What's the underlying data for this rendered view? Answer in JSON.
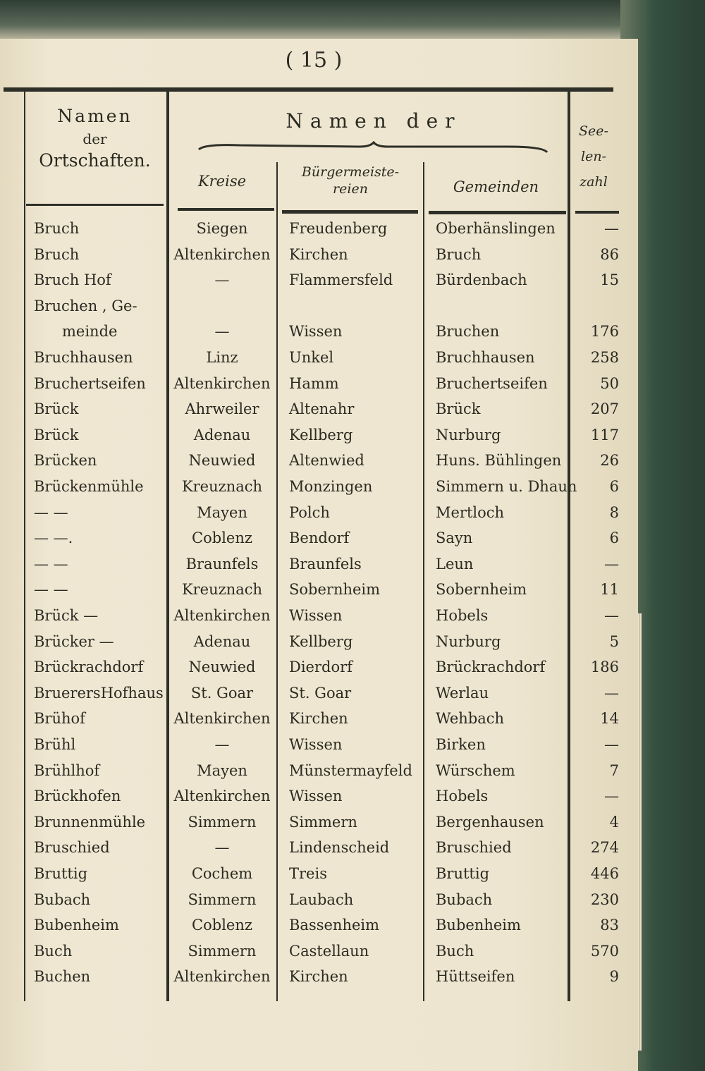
{
  "page_number": "( 15 )",
  "headers": {
    "places": [
      "Namen",
      "der",
      "Ortschaften."
    ],
    "group": "Namen der",
    "kreise": "Kreise",
    "buergermeistereien": [
      "Bürgermeiste-",
      "reien"
    ],
    "gemeinden": "Gemeinden",
    "seelenzahl": [
      "See-",
      "len-",
      "zahl"
    ]
  },
  "rows": [
    {
      "ort": "Bruch",
      "kreis": "Siegen",
      "bm": "Freudenberg",
      "gemeinde": "Oberhänslingen",
      "zahl": "—"
    },
    {
      "ort": "Bruch",
      "kreis": "Altenkirchen",
      "bm": "Kirchen",
      "gemeinde": "Bruch",
      "zahl": "86"
    },
    {
      "ort": "Bruch Hof",
      "kreis": "—",
      "bm": "Flammersfeld",
      "gemeinde": "Bürdenbach",
      "zahl": "15"
    },
    {
      "ort": "Bruchen , Ge-",
      "ort2": "meinde",
      "kreis": "—",
      "bm": "Wissen",
      "gemeinde": "Bruchen",
      "zahl": "176"
    },
    {
      "ort": "Bruchhausen",
      "kreis": "Linz",
      "bm": "Unkel",
      "gemeinde": "Bruchhausen",
      "zahl": "258"
    },
    {
      "ort": "Bruchertseifen",
      "kreis": "Altenkirchen",
      "bm": "Hamm",
      "gemeinde": "Bruchertseifen",
      "zahl": "50"
    },
    {
      "ort": "Brück",
      "kreis": "Ahrweiler",
      "bm": "Altenahr",
      "gemeinde": "Brück",
      "zahl": "207"
    },
    {
      "ort": "Brück",
      "kreis": "Adenau",
      "bm": "Kellberg",
      "gemeinde": "Nurburg",
      "zahl": "117"
    },
    {
      "ort": "Brücken",
      "kreis": "Neuwied",
      "bm": "Altenwied",
      "gemeinde": "Huns. Bühlingen",
      "zahl": "26"
    },
    {
      "ort": "Brückenmühle",
      "kreis": "Kreuznach",
      "bm": "Monzingen",
      "gemeinde": "Simmern u. Dhaun",
      "zahl": "6"
    },
    {
      "ort": "—   —",
      "kreis": "Mayen",
      "bm": "Polch",
      "gemeinde": "Mertloch",
      "zahl": "8"
    },
    {
      "ort": "—   —.",
      "kreis": "Coblenz",
      "bm": "Bendorf",
      "gemeinde": "Sayn",
      "zahl": "6"
    },
    {
      "ort": "—   —",
      "kreis": "Braunfels",
      "bm": "Braunfels",
      "gemeinde": "Leun",
      "zahl": "—"
    },
    {
      "ort": "—   —",
      "kreis": "Kreuznach",
      "bm": "Sobernheim",
      "gemeinde": "Sobernheim",
      "zahl": "11"
    },
    {
      "ort": "Brück —",
      "kreis": "Altenkirchen",
      "bm": "Wissen",
      "gemeinde": "Hobels",
      "zahl": "—"
    },
    {
      "ort": "Brücker —",
      "kreis": "Adenau",
      "bm": "Kellberg",
      "gemeinde": "Nurburg",
      "zahl": "5"
    },
    {
      "ort": "Brückrachdorf",
      "kreis": "Neuwied",
      "bm": "Dierdorf",
      "gemeinde": "Brückrachdorf",
      "zahl": "186"
    },
    {
      "ort": "BruerersHofhaus",
      "kreis": "St. Goar",
      "bm": "St. Goar",
      "gemeinde": "Werlau",
      "zahl": "—"
    },
    {
      "ort": "Brühof",
      "kreis": "Altenkirchen",
      "bm": "Kirchen",
      "gemeinde": "Wehbach",
      "zahl": "14"
    },
    {
      "ort": "Brühl",
      "kreis": "—",
      "bm": "Wissen",
      "gemeinde": "Birken",
      "zahl": "—"
    },
    {
      "ort": "Brühlhof",
      "kreis": "Mayen",
      "bm": "Münstermayfeld",
      "gemeinde": "Würschem",
      "zahl": "7"
    },
    {
      "ort": "Brückhofen",
      "kreis": "Altenkirchen",
      "bm": "Wissen",
      "gemeinde": "Hobels",
      "zahl": "—"
    },
    {
      "ort": "Brunnenmühle",
      "kreis": "Simmern",
      "bm": "Simmern",
      "gemeinde": "Bergenhausen",
      "zahl": "4"
    },
    {
      "ort": "Bruschied",
      "kreis": "—",
      "bm": "Lindenscheid",
      "gemeinde": "Bruschied",
      "zahl": "274"
    },
    {
      "ort": "Bruttig",
      "kreis": "Cochem",
      "bm": "Treis",
      "gemeinde": "Bruttig",
      "zahl": "446"
    },
    {
      "ort": "Bubach",
      "kreis": "Simmern",
      "bm": "Laubach",
      "gemeinde": "Bubach",
      "zahl": "230"
    },
    {
      "ort": "Bubenheim",
      "kreis": "Coblenz",
      "bm": "Bassenheim",
      "gemeinde": "Bubenheim",
      "zahl": "83"
    },
    {
      "ort": "Buch",
      "kreis": "Simmern",
      "bm": "Castellaun",
      "gemeinde": "Buch",
      "zahl": "570"
    },
    {
      "ort": "Buchen",
      "kreis": "Altenkirchen",
      "bm": "Kirchen",
      "gemeinde": "Hüttseifen",
      "zahl": "9"
    }
  ]
}
